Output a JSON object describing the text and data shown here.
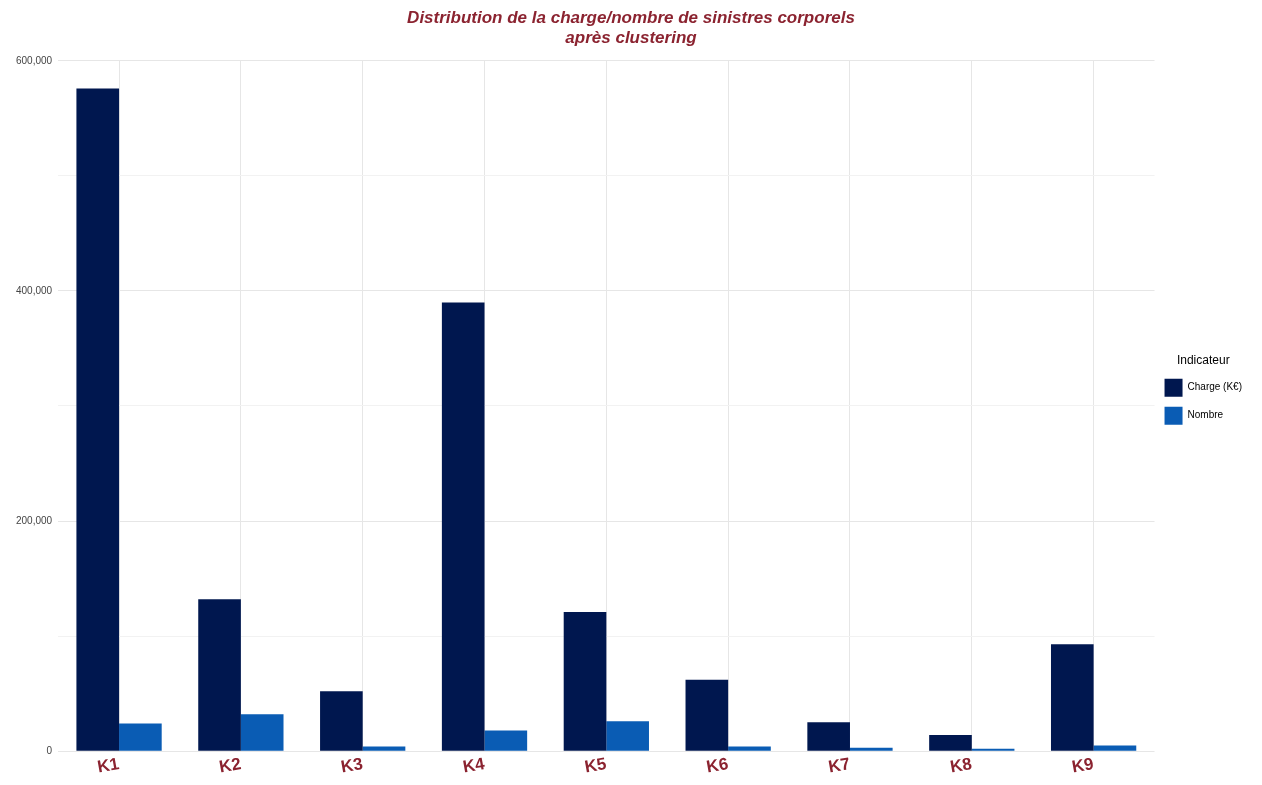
{
  "chart_data": {
    "type": "bar",
    "title": "Distribution de la charge/nombre de sinistres corporels\naprès clustering",
    "categories": [
      "K1",
      "K2",
      "K3",
      "K4",
      "K5",
      "K6",
      "K7",
      "K8",
      "K9"
    ],
    "series": [
      {
        "name": "Charge (K€)",
        "color": "#00174f",
        "values": [
          576000,
          132000,
          52000,
          390000,
          121000,
          62000,
          25000,
          14000,
          93000
        ]
      },
      {
        "name": "Nombre",
        "color": "#0a5cb4",
        "values": [
          24000,
          32000,
          4000,
          18000,
          26000,
          4000,
          3000,
          2000,
          5000
        ]
      }
    ],
    "ylim": [
      0,
      600000
    ],
    "yticks": [
      0,
      {
        "value": 100000,
        "label": null
      },
      {
        "value": 200000,
        "label": "200,000"
      },
      {
        "value": 300000,
        "label": null
      },
      {
        "value": 400000,
        "label": "400,000"
      },
      {
        "value": 500000,
        "label": null
      },
      {
        "value": 600000,
        "label": "600,000"
      }
    ],
    "grid": true,
    "legend": "right",
    "legend_title": "Indicateur"
  }
}
